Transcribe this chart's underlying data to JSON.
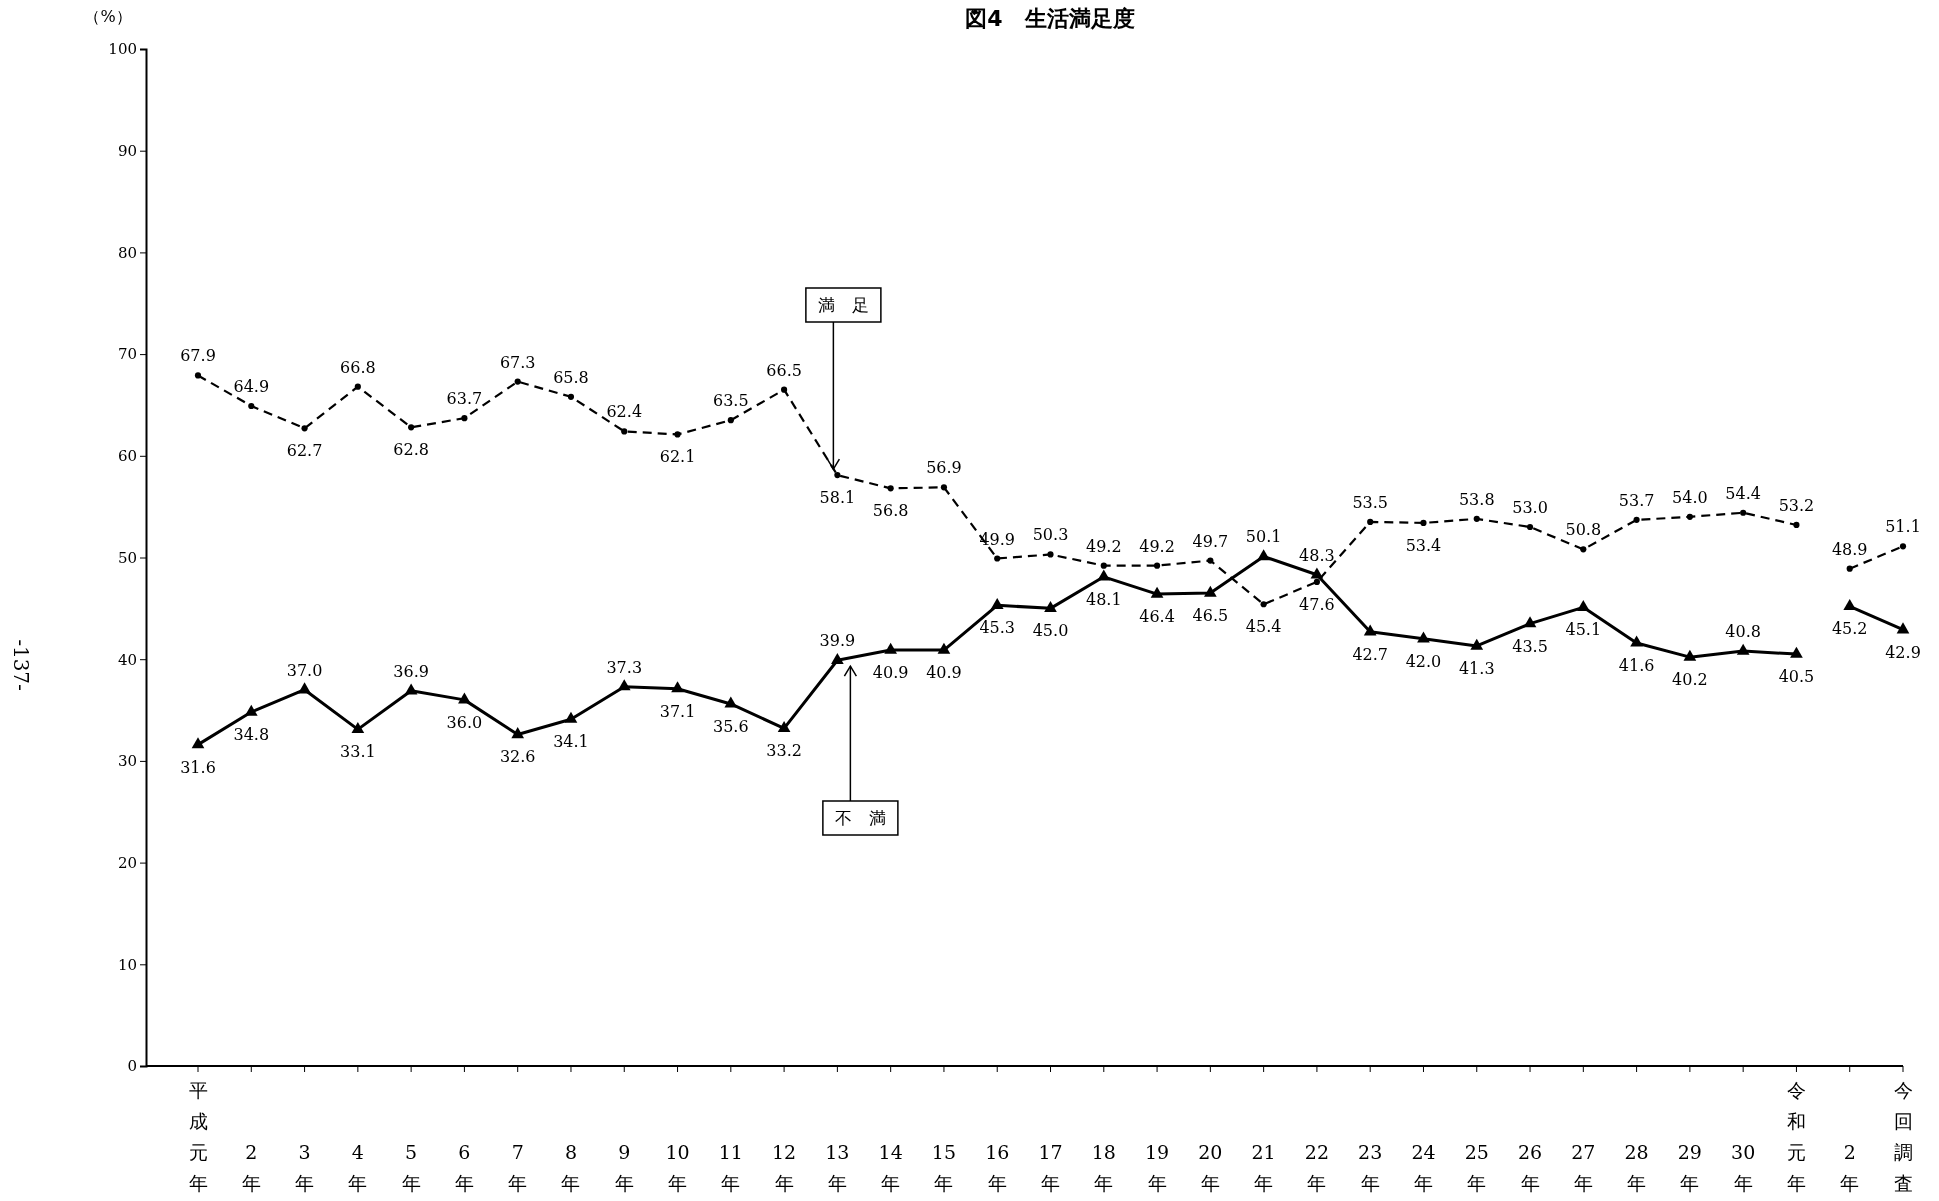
{
  "chart_data": {
    "type": "line",
    "title": "図4　生活満足度",
    "ylabel": "（%）",
    "annotations": [
      "-137-"
    ],
    "categories": [
      "平成元年",
      "2年",
      "3年",
      "4年",
      "5年",
      "6年",
      "7年",
      "8年",
      "9年",
      "10年",
      "11年",
      "12年",
      "13年",
      "14年",
      "15年",
      "16年",
      "17年",
      "18年",
      "19年",
      "20年",
      "21年",
      "22年",
      "23年",
      "24年",
      "25年",
      "26年",
      "27年",
      "28年",
      "29年",
      "30年",
      "令和元年",
      "2年",
      "今回調査"
    ],
    "ylim": [
      0,
      100
    ],
    "yticks": [
      0,
      10,
      20,
      30,
      40,
      50,
      60,
      70,
      80,
      90,
      100
    ],
    "grid": false,
    "series": [
      {
        "name": "満　足",
        "color": "#000000",
        "marker": "circle",
        "line_style": "dashed",
        "values": [
          67.9,
          64.9,
          62.7,
          66.8,
          62.8,
          63.7,
          67.3,
          65.8,
          62.4,
          62.1,
          63.5,
          66.5,
          58.1,
          56.8,
          56.9,
          49.9,
          50.3,
          49.2,
          49.2,
          49.7,
          45.4,
          47.6,
          53.5,
          53.4,
          53.8,
          53.0,
          50.8,
          53.7,
          54.0,
          54.4,
          53.2,
          null,
          null
        ],
        "value_labels": [
          "67.9",
          "64.9",
          "62.7",
          "66.8",
          "62.8",
          "63.7",
          "67.3",
          "65.8",
          "62.4",
          "62.1",
          "63.5",
          "66.5",
          "58.1",
          "56.8",
          "56.9",
          "49.9",
          "50.3",
          "49.2",
          "49.2",
          "49.7",
          "45.4",
          "47.6",
          "53.5",
          "53.4",
          "53.8",
          "53.0",
          "50.8",
          "53.7",
          "54.0",
          "54.4",
          "53.2",
          null,
          null
        ]
      },
      {
        "color": "#000000",
        "marker": "circle",
        "line_style": "dashed",
        "values": [
          null,
          null,
          null,
          null,
          null,
          null,
          null,
          null,
          null,
          null,
          null,
          null,
          null,
          null,
          null,
          null,
          null,
          null,
          null,
          null,
          null,
          null,
          null,
          null,
          null,
          null,
          null,
          null,
          null,
          null,
          null,
          48.9,
          51.1
        ],
        "value_labels": [
          null,
          null,
          null,
          null,
          null,
          null,
          null,
          null,
          null,
          null,
          null,
          null,
          null,
          null,
          null,
          null,
          null,
          null,
          null,
          null,
          null,
          null,
          null,
          null,
          null,
          null,
          null,
          null,
          null,
          null,
          null,
          "48.9",
          "51.1"
        ]
      },
      {
        "name": "不　満",
        "color": "#000000",
        "marker": "triangle",
        "line_style": "solid",
        "values": [
          31.6,
          34.8,
          37.0,
          33.1,
          36.9,
          36.0,
          32.6,
          34.1,
          37.3,
          37.1,
          35.6,
          33.2,
          39.9,
          40.9,
          40.9,
          45.3,
          45.0,
          48.1,
          46.4,
          46.5,
          50.1,
          48.3,
          42.7,
          42.0,
          41.3,
          43.5,
          45.1,
          41.6,
          40.2,
          40.8,
          40.5,
          null,
          null
        ],
        "value_labels": [
          "31.6",
          "34.8",
          "37.0",
          "33.1",
          "36.9",
          "36.0",
          "32.6",
          "34.1",
          "37.3",
          "37.1",
          "35.6",
          "33.2",
          "39.9",
          "40.9",
          "40.9",
          "45.3",
          "45.0",
          "48.1",
          "46.4",
          "46.5",
          "50.1",
          "48.3",
          "42.7",
          "42.0",
          "41.3",
          "43.5",
          "45.1",
          "41.6",
          "40.2",
          "40.8",
          "40.5",
          null,
          null
        ]
      },
      {
        "color": "#000000",
        "marker": "triangle",
        "line_style": "solid",
        "values": [
          null,
          null,
          null,
          null,
          null,
          null,
          null,
          null,
          null,
          null,
          null,
          null,
          null,
          null,
          null,
          null,
          null,
          null,
          null,
          null,
          null,
          null,
          null,
          null,
          null,
          null,
          null,
          null,
          null,
          null,
          null,
          45.2,
          42.9
        ],
        "value_labels": [
          null,
          null,
          null,
          null,
          null,
          null,
          null,
          null,
          null,
          null,
          null,
          null,
          null,
          null,
          null,
          null,
          null,
          null,
          null,
          null,
          null,
          null,
          null,
          null,
          null,
          null,
          null,
          null,
          null,
          null,
          null,
          "45.2",
          "42.9"
        ]
      }
    ]
  }
}
